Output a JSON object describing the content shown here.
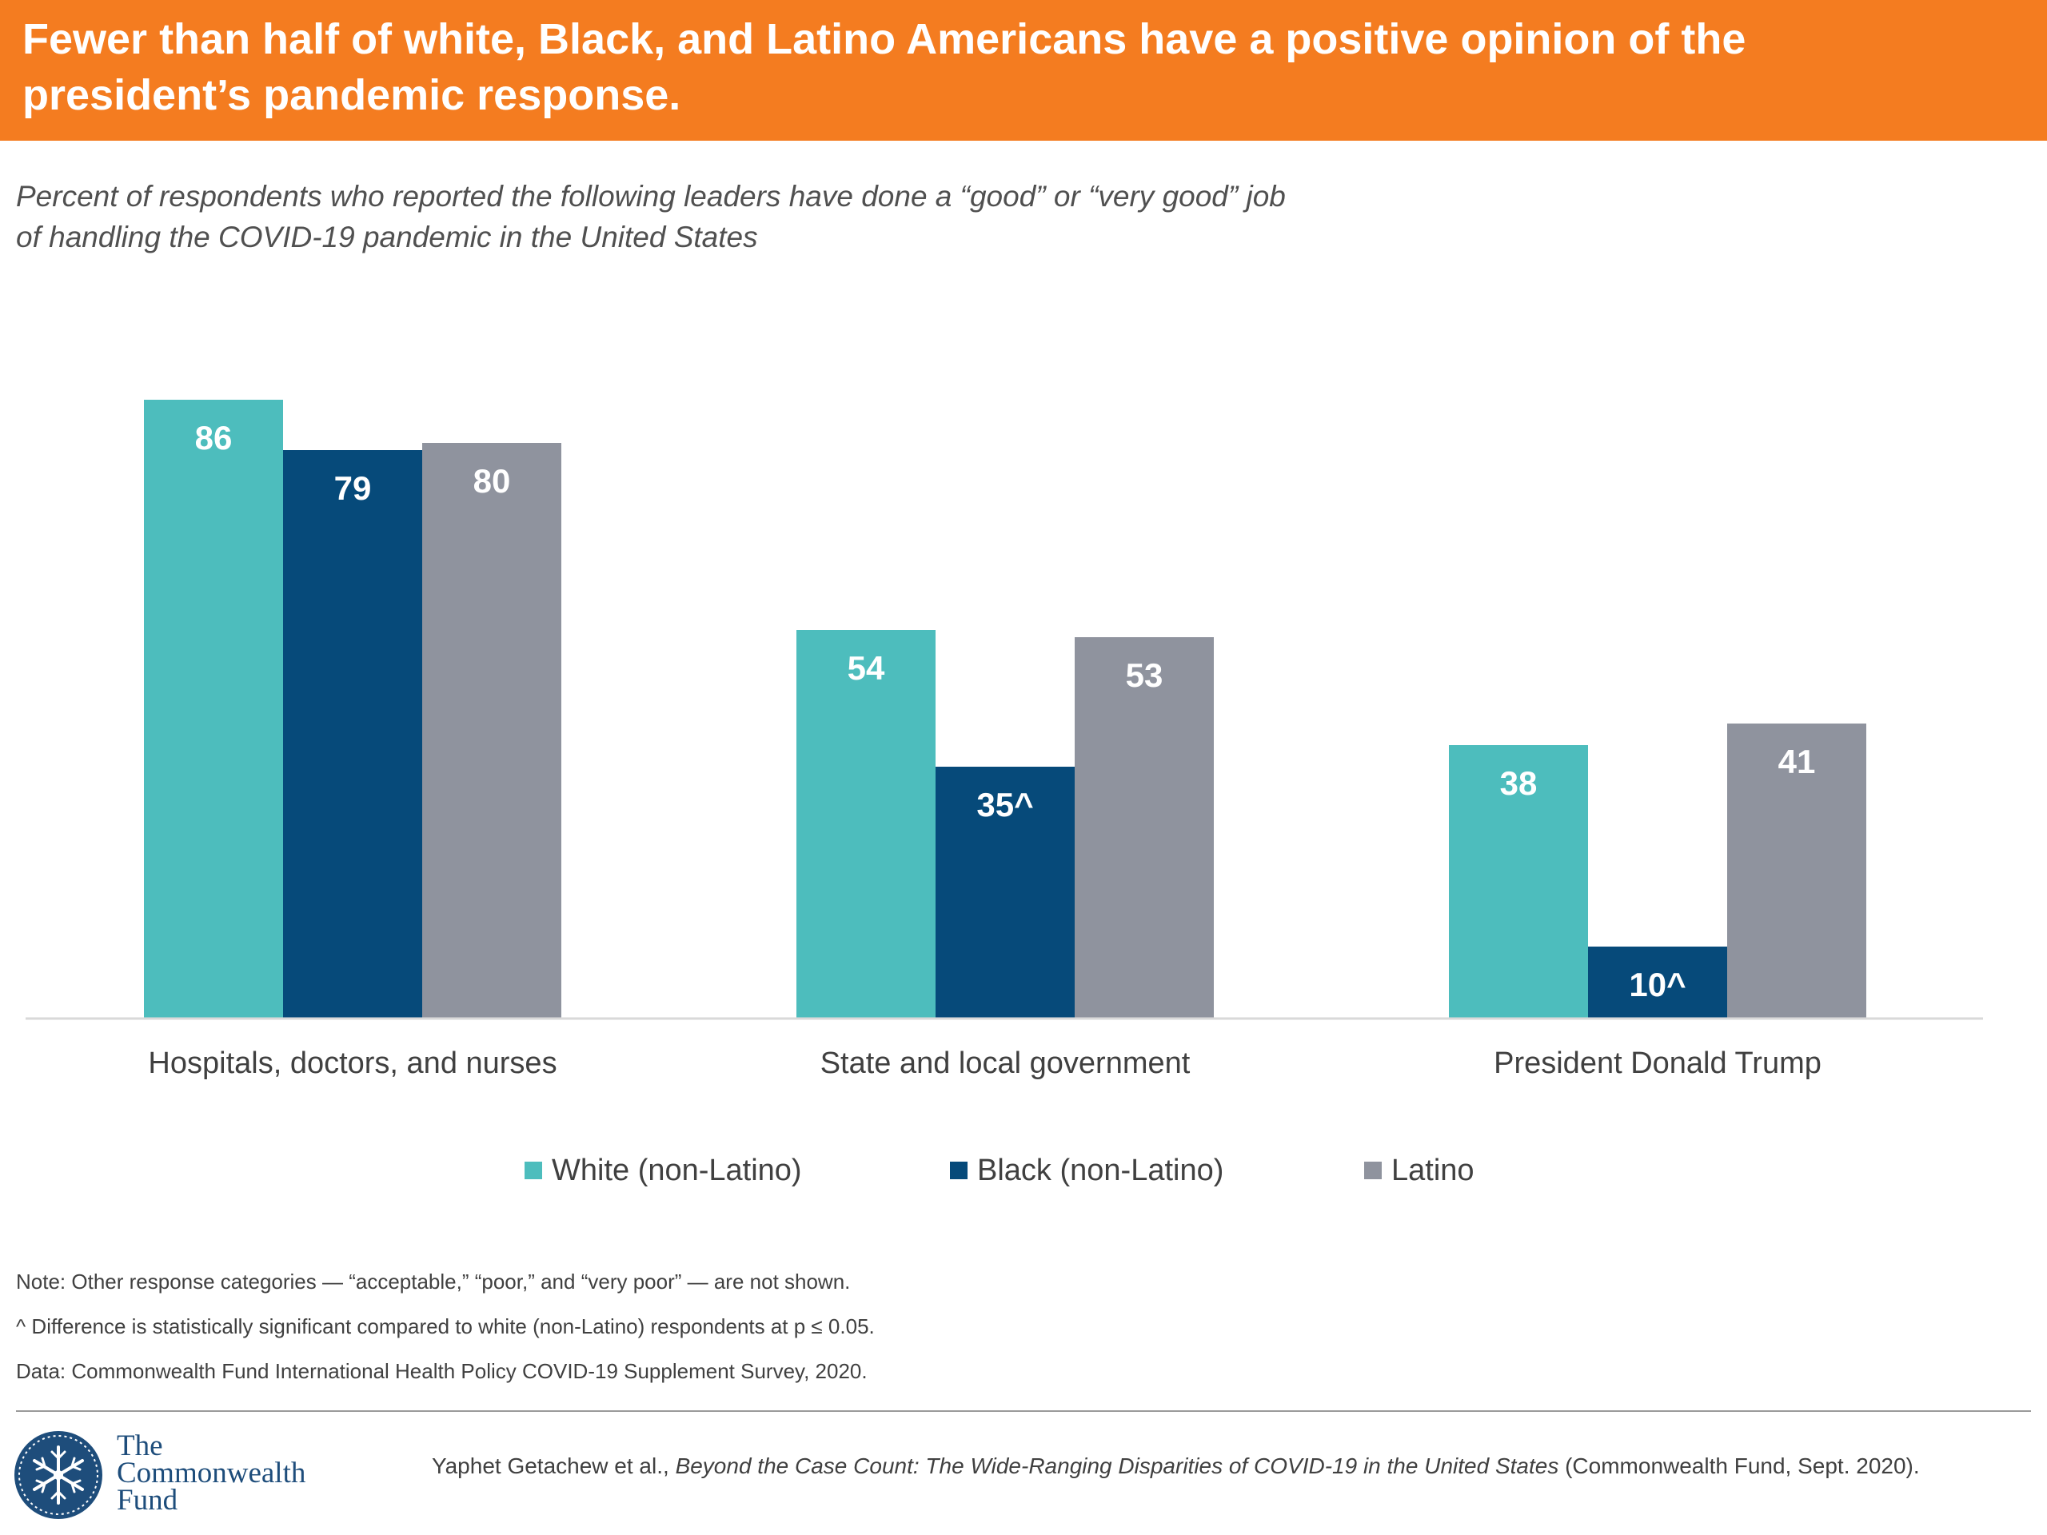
{
  "header": {
    "title_line1": "Fewer than half of white, Black, and Latino Americans have a positive opinion of the",
    "title_line2": "president’s pandemic response.",
    "background_color": "#f47c20"
  },
  "subtitle": {
    "line1": "Percent of respondents who reported the following leaders have done a “good” or “very good” job",
    "line2": "of handling the COVID-19 pandemic in the United States"
  },
  "chart_data": {
    "type": "bar",
    "categories": [
      "Hospitals, doctors, and nurses",
      "State and local government",
      "President Donald Trump"
    ],
    "series": [
      {
        "name": "White (non-Latino)",
        "color": "#4dbdbd",
        "values": [
          86,
          54,
          38
        ],
        "labels": [
          "86",
          "54",
          "38"
        ]
      },
      {
        "name": "Black (non-Latino)",
        "color": "#064a7a",
        "values": [
          79,
          35,
          10
        ],
        "labels": [
          "79",
          "35^",
          "10^"
        ]
      },
      {
        "name": "Latino",
        "color": "#8f939e",
        "values": [
          80,
          53,
          41
        ],
        "labels": [
          "80",
          "53",
          "41"
        ]
      }
    ],
    "ylim": [
      0,
      100
    ],
    "grid": false,
    "legend_position": "bottom"
  },
  "notes": [
    "Note: Other response categories — “acceptable,” “poor,” and “very poor” — are not shown.",
    "^ Difference is statistically significant compared to white (non-Latino) respondents at p ≤ 0.05.",
    "Data: Commonwealth Fund International Health Policy COVID-19 Supplement Survey, 2020."
  ],
  "logo": {
    "line1": "The",
    "line2": "Commonwealth",
    "line3": "Fund",
    "icon": "snowflake-seal-icon"
  },
  "citation": {
    "authors": "Yaphet Getachew et al., ",
    "title": "Beyond the Case Count: The Wide-Ranging Disparities of COVID-19 in the United States",
    "source": " (Commonwealth Fund, Sept. 2020)."
  }
}
